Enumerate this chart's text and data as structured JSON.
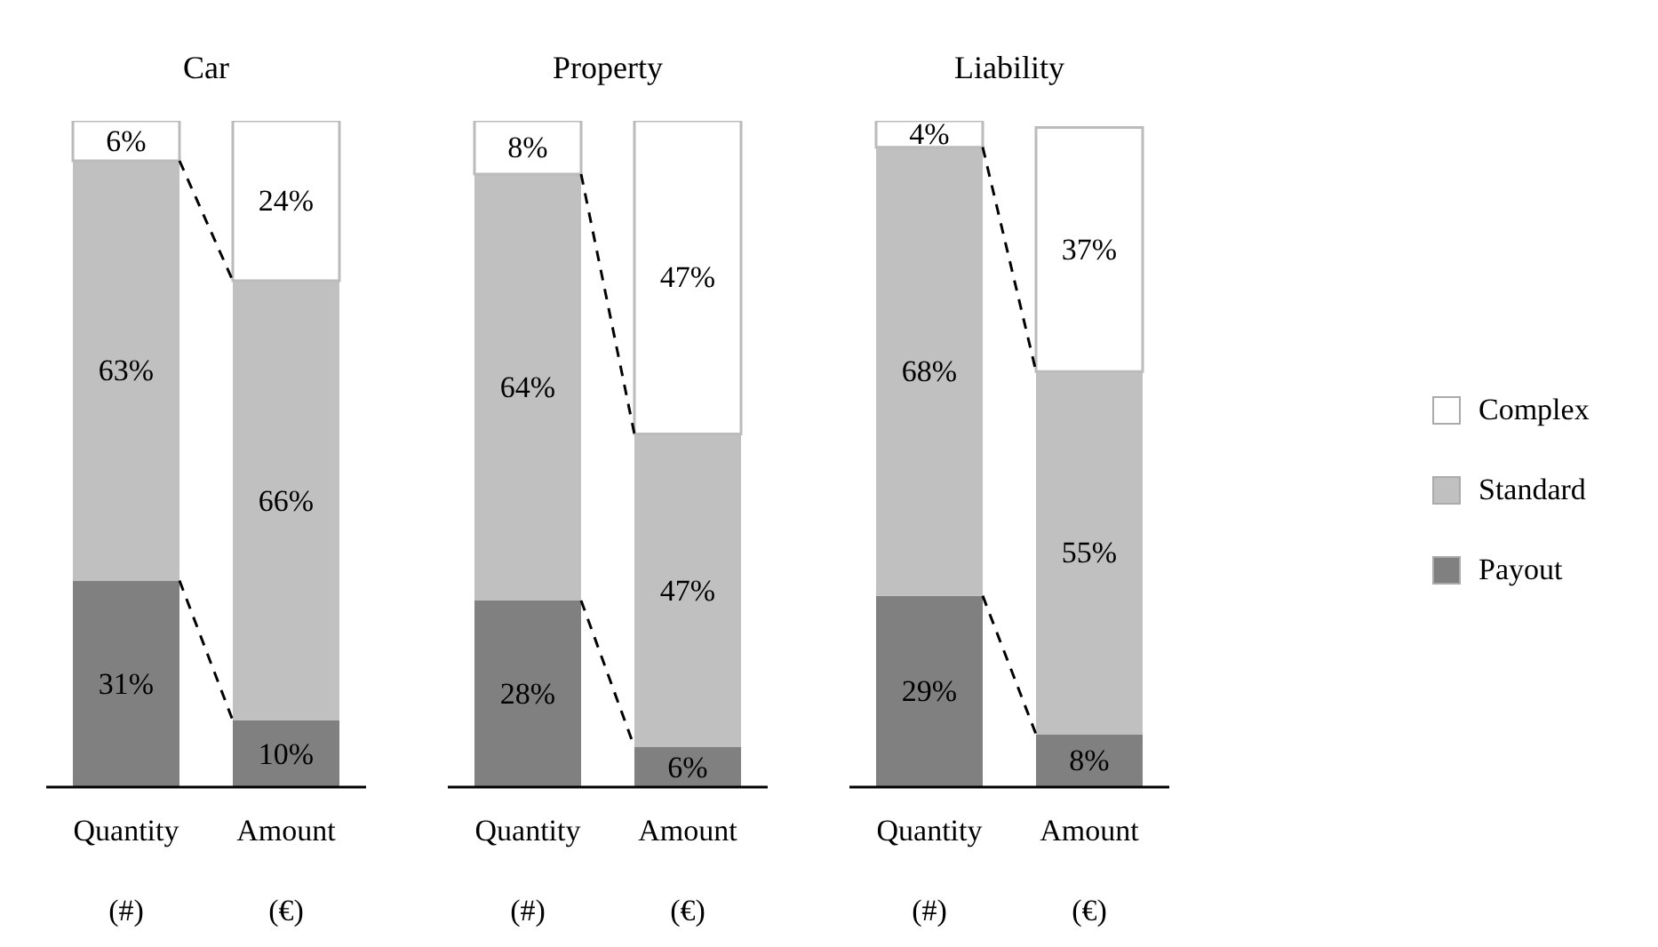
{
  "chart_data": [
    {
      "type": "bar",
      "title": "Car",
      "categories": [
        "Quantity (#)",
        "Amount (€)"
      ],
      "stacked": true,
      "series": [
        {
          "color": "#808080",
          "values": [
            31,
            10
          ],
          "value_labels": [
            "31%",
            "10%"
          ]
        },
        {
          "color": "#c0c0c0",
          "values": [
            63,
            66
          ],
          "value_labels": [
            "63%",
            "66%"
          ]
        },
        {
          "color": "#ffffff",
          "values": [
            6,
            24
          ],
          "value_labels": [
            "6%",
            "24%"
          ]
        }
      ]
    },
    {
      "type": "bar",
      "title": "Property",
      "categories": [
        "Quantity (#)",
        "Amount (€)"
      ],
      "stacked": true,
      "series": [
        {
          "color": "#808080",
          "values": [
            28,
            6
          ],
          "value_labels": [
            "28%",
            "6%"
          ]
        },
        {
          "color": "#c0c0c0",
          "values": [
            64,
            47
          ],
          "value_labels": [
            "64%",
            "47%"
          ]
        },
        {
          "color": "#ffffff",
          "values": [
            8,
            47
          ],
          "value_labels": [
            "8%",
            "47%"
          ]
        }
      ]
    },
    {
      "type": "bar",
      "title": "Liability",
      "categories": [
        "Quantity (#)",
        "Amount (€)"
      ],
      "stacked": true,
      "legend": "right",
      "series": [
        {
          "name": "Payout",
          "color": "#808080",
          "values": [
            29,
            8
          ],
          "value_labels": [
            "29%",
            "8%"
          ]
        },
        {
          "name": "Standard",
          "color": "#c0c0c0",
          "values": [
            68,
            55
          ],
          "value_labels": [
            "68%",
            "55%"
          ]
        },
        {
          "name": "Complex",
          "color": "#ffffff",
          "values": [
            4,
            37
          ],
          "value_labels": [
            "4%",
            "37%"
          ]
        }
      ]
    }
  ]
}
